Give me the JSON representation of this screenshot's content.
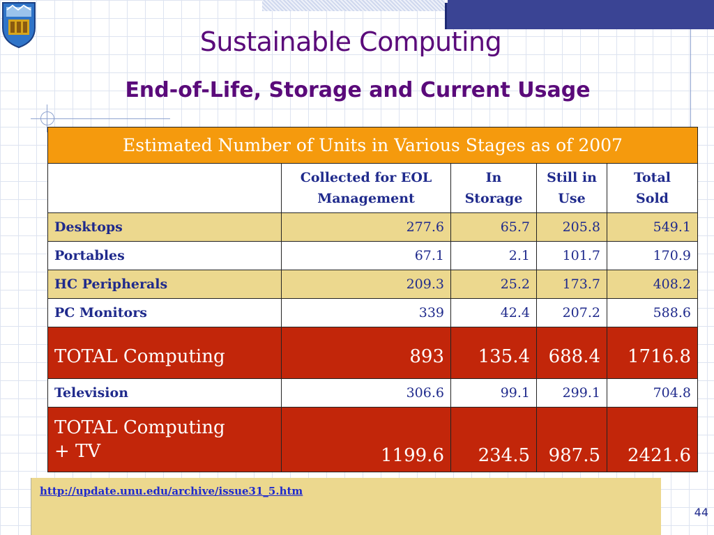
{
  "title": "Sustainable Computing",
  "subtitle": "End-of-Life, Storage and Current Usage",
  "table": {
    "caption": "Estimated Number of Units in Various Stages as of 2007",
    "columns": [
      "",
      "Collected for EOL Management",
      "In Storage",
      "Still in Use",
      "Total Sold"
    ],
    "column_lines": [
      [],
      [
        "Collected for EOL",
        "Management"
      ],
      [
        "In",
        "Storage"
      ],
      [
        "Still in",
        "Use"
      ],
      [
        "Total",
        "Sold"
      ]
    ],
    "rows": [
      {
        "label": [
          "Desktops"
        ],
        "values": [
          "277.6",
          "65.7",
          "205.8",
          "549.1"
        ],
        "style": "tan"
      },
      {
        "label": [
          "Portables"
        ],
        "values": [
          "67.1",
          "2.1",
          "101.7",
          "170.9"
        ],
        "style": "white"
      },
      {
        "label": [
          "HC Peripherals"
        ],
        "values": [
          "209.3",
          "25.2",
          "173.7",
          "408.2"
        ],
        "style": "tan"
      },
      {
        "label": [
          "PC Monitors"
        ],
        "values": [
          "339",
          "42.4",
          "207.2",
          "588.6"
        ],
        "style": "white"
      },
      {
        "label": [
          "TOTAL Computing"
        ],
        "values": [
          "893",
          "135.4",
          "688.4",
          "1716.8"
        ],
        "style": "total total1"
      },
      {
        "label": [
          "Television"
        ],
        "values": [
          "306.6",
          "99.1",
          "299.1",
          "704.8"
        ],
        "style": "white"
      },
      {
        "label": [
          "TOTAL Computing",
          "+ TV"
        ],
        "values": [
          "1199.6",
          "234.5",
          "987.5",
          "2421.6"
        ],
        "style": "total total2"
      }
    ]
  },
  "source_link": "http://update.unu.edu/archive/issue31_5.htm",
  "page_number": "44",
  "colors": {
    "title": "#5a0a7a",
    "caption_bg": "#f59a0d",
    "total_bg": "#c2260a",
    "tan_bg": "#ecd88e",
    "text_blue": "#1f2a8c"
  },
  "icons": {
    "logo": "university-crest-icon"
  }
}
